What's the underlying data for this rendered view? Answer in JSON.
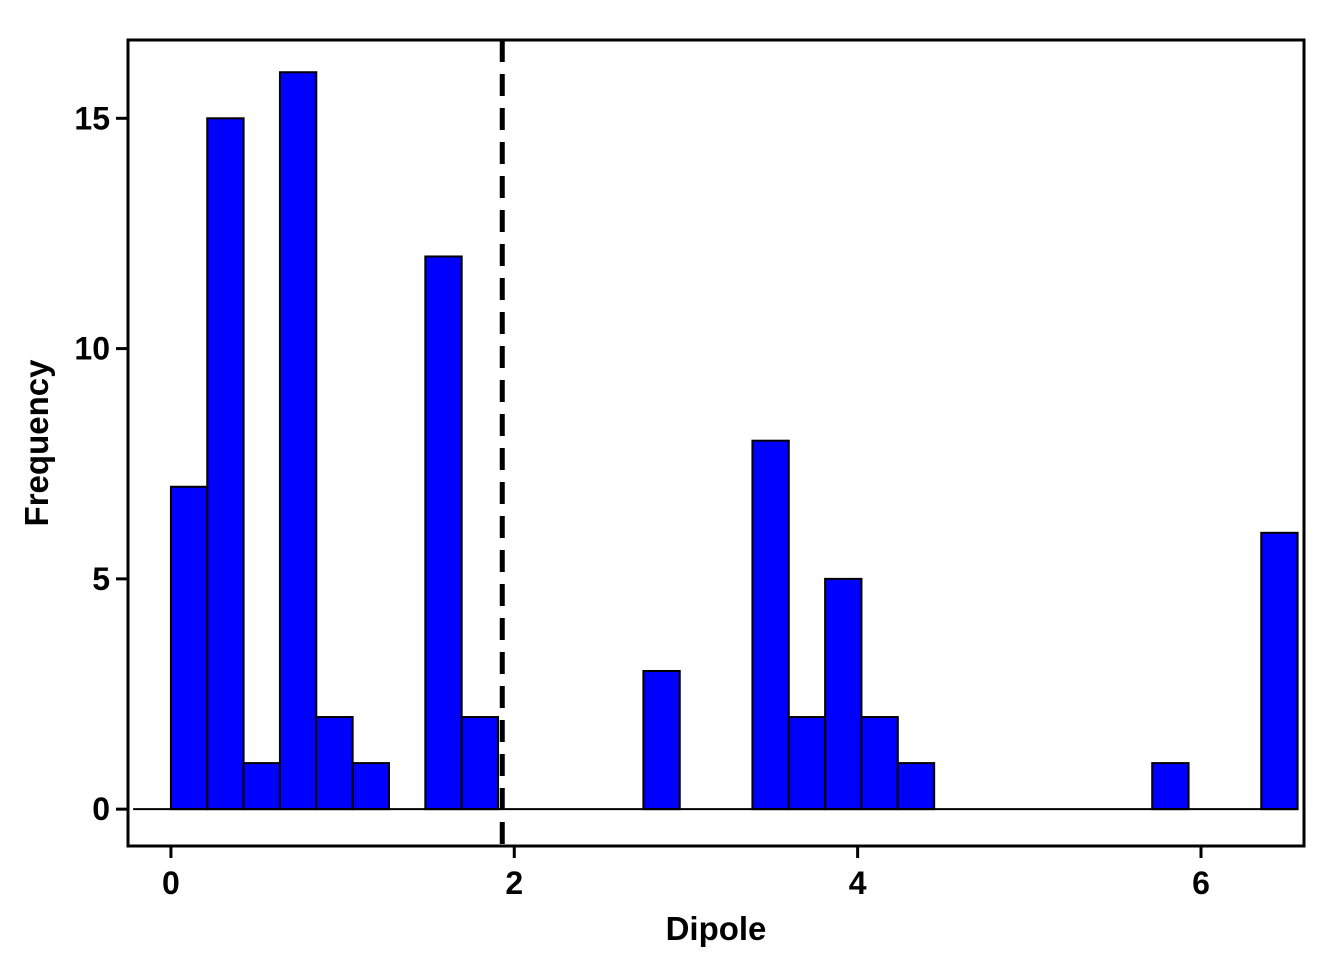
{
  "chart_data": {
    "type": "bar",
    "subtype": "histogram",
    "title": "",
    "xlabel": "Dipole",
    "ylabel": "Frequency",
    "xlim": [
      -0.25,
      6.6
    ],
    "ylim": [
      -0.8,
      16.7
    ],
    "xticks": [
      0,
      2,
      4,
      6
    ],
    "yticks": [
      0,
      5,
      10,
      15
    ],
    "bin_width": 0.2117,
    "bins": [
      {
        "left": 0.0,
        "right": 0.2117,
        "count": 7
      },
      {
        "left": 0.2117,
        "right": 0.4234,
        "count": 15
      },
      {
        "left": 0.4234,
        "right": 0.6351,
        "count": 1
      },
      {
        "left": 0.6351,
        "right": 0.8468,
        "count": 16
      },
      {
        "left": 0.8468,
        "right": 1.0585,
        "count": 2
      },
      {
        "left": 1.0585,
        "right": 1.2702,
        "count": 1
      },
      {
        "left": 1.2702,
        "right": 1.4819,
        "count": 0
      },
      {
        "left": 1.4819,
        "right": 1.6936,
        "count": 12
      },
      {
        "left": 1.6936,
        "right": 1.9053,
        "count": 2
      },
      {
        "left": 1.9053,
        "right": 2.117,
        "count": 0
      },
      {
        "left": 2.117,
        "right": 2.3287,
        "count": 0
      },
      {
        "left": 2.3287,
        "right": 2.5404,
        "count": 0
      },
      {
        "left": 2.5404,
        "right": 2.7521,
        "count": 0
      },
      {
        "left": 2.7521,
        "right": 2.9638,
        "count": 3
      },
      {
        "left": 2.9638,
        "right": 3.1755,
        "count": 0
      },
      {
        "left": 3.1755,
        "right": 3.3872,
        "count": 0
      },
      {
        "left": 3.3872,
        "right": 3.5989,
        "count": 8
      },
      {
        "left": 3.5989,
        "right": 3.8106,
        "count": 2
      },
      {
        "left": 3.8106,
        "right": 4.0223,
        "count": 5
      },
      {
        "left": 4.0223,
        "right": 4.234,
        "count": 2
      },
      {
        "left": 4.234,
        "right": 4.4457,
        "count": 1
      },
      {
        "left": 4.4457,
        "right": 4.6574,
        "count": 0
      },
      {
        "left": 4.6574,
        "right": 4.8691,
        "count": 0
      },
      {
        "left": 4.8691,
        "right": 5.0808,
        "count": 0
      },
      {
        "left": 5.0808,
        "right": 5.2925,
        "count": 0
      },
      {
        "left": 5.2925,
        "right": 5.5042,
        "count": 0
      },
      {
        "left": 5.5042,
        "right": 5.7159,
        "count": 0
      },
      {
        "left": 5.7159,
        "right": 5.9276,
        "count": 1
      },
      {
        "left": 5.9276,
        "right": 6.1393,
        "count": 0
      },
      {
        "left": 6.1393,
        "right": 6.351,
        "count": 0
      },
      {
        "left": 6.351,
        "right": 6.5627,
        "count": 6
      }
    ],
    "baseline": {
      "x_from": -0.22,
      "x_to": 6.5627,
      "y": 0
    },
    "reference_line": {
      "x": 1.93,
      "style": "dashed",
      "color": "#000000"
    },
    "bar_color": "#0000ff",
    "bar_edge_color": "#000000",
    "grid": false,
    "legend": "none"
  }
}
